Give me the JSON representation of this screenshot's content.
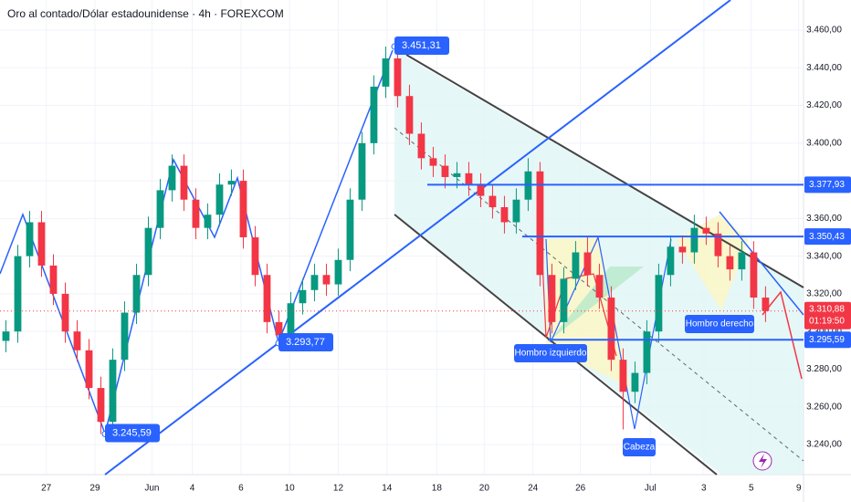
{
  "chart_data": {
    "type": "candlestick",
    "title": "Oro al contado/Dólar estadounidense · 4h · FOREXCOM",
    "up_color": "#089981",
    "down_color": "#f23645",
    "open": [
      3295,
      3300,
      3340,
      3358,
      3335,
      3320,
      3300,
      3290,
      3270,
      3252,
      3285,
      3310,
      3330,
      3355,
      3375,
      3388,
      3370,
      3355,
      3362,
      3378,
      3380,
      3350,
      3330,
      3305,
      3298,
      3315,
      3322,
      3330,
      3325,
      3338,
      3370,
      3400,
      3430,
      3445,
      3425,
      3405,
      3392,
      3388,
      3382,
      3384,
      3378,
      3372,
      3366,
      3358,
      3370,
      3385,
      3330,
      3305,
      3328,
      3342,
      3330,
      3318,
      3285,
      3268,
      3278,
      3300,
      3330,
      3345,
      3342,
      3355,
      3352,
      3340,
      3333,
      3342,
      3318
    ],
    "high": [
      3306,
      3346,
      3364,
      3364,
      3341,
      3326,
      3306,
      3296,
      3276,
      3291,
      3316,
      3336,
      3361,
      3381,
      3394,
      3394,
      3376,
      3368,
      3384,
      3386,
      3386,
      3356,
      3336,
      3311,
      3321,
      3328,
      3336,
      3336,
      3344,
      3376,
      3406,
      3436,
      3451.31,
      3449,
      3431,
      3411,
      3398,
      3394,
      3390,
      3390,
      3384,
      3378,
      3372,
      3376,
      3392,
      3390,
      3336,
      3334,
      3348,
      3350,
      3336,
      3324,
      3291,
      3284,
      3306,
      3336,
      3351,
      3351,
      3362,
      3361,
      3358,
      3346,
      3348,
      3348,
      3324
    ],
    "low": [
      3289,
      3294,
      3334,
      3329,
      3314,
      3294,
      3284,
      3264,
      3245.59,
      3246,
      3279,
      3304,
      3324,
      3349,
      3369,
      3364,
      3349,
      3349,
      3356,
      3372,
      3344,
      3324,
      3299,
      3293.77,
      3292,
      3309,
      3316,
      3319,
      3319,
      3332,
      3364,
      3394,
      3424,
      3419,
      3399,
      3386,
      3382,
      3376,
      3376,
      3372,
      3366,
      3360,
      3352,
      3352,
      3364,
      3324,
      3299,
      3299,
      3322,
      3324,
      3312,
      3279,
      3248,
      3262,
      3272,
      3294,
      3324,
      3336,
      3336,
      3346,
      3334,
      3327,
      3327,
      3312,
      3305
    ],
    "close": [
      3300,
      3340,
      3358,
      3335,
      3320,
      3300,
      3290,
      3270,
      3252,
      3285,
      3310,
      3330,
      3355,
      3375,
      3388,
      3370,
      3355,
      3362,
      3378,
      3380,
      3350,
      3330,
      3305,
      3298,
      3315,
      3322,
      3330,
      3325,
      3338,
      3370,
      3400,
      3430,
      3445,
      3425,
      3405,
      3392,
      3388,
      3382,
      3384,
      3378,
      3372,
      3366,
      3358,
      3370,
      3385,
      3330,
      3305,
      3328,
      3342,
      3330,
      3318,
      3285,
      3268,
      3278,
      3300,
      3330,
      3345,
      3342,
      3355,
      3352,
      3340,
      3333,
      3342,
      3318,
      3310.88
    ],
    "xlim": [
      -0.5,
      67.2
    ],
    "xticks": [
      {
        "value": 3.4,
        "label": "27"
      },
      {
        "value": 7.5,
        "label": "29"
      },
      {
        "value": 12.3,
        "label": "Jun"
      },
      {
        "value": 15.7,
        "label": "4"
      },
      {
        "value": 19.8,
        "label": "6"
      },
      {
        "value": 23.9,
        "label": "10"
      },
      {
        "value": 28,
        "label": "12"
      },
      {
        "value": 32.1,
        "label": "14"
      },
      {
        "value": 36.3,
        "label": "18"
      },
      {
        "value": 40.3,
        "label": "20"
      },
      {
        "value": 44.4,
        "label": "24"
      },
      {
        "value": 48.4,
        "label": "26"
      },
      {
        "value": 54.3,
        "label": "Jul"
      },
      {
        "value": 58.8,
        "label": "3"
      },
      {
        "value": 62.8,
        "label": "5"
      },
      {
        "value": 66.8,
        "label": "9"
      }
    ],
    "ylim": [
      3224,
      3476
    ],
    "yticks": [
      {
        "value": 3240,
        "label": "3.240,00"
      },
      {
        "value": 3260,
        "label": "3.260,00"
      },
      {
        "value": 3280,
        "label": "3.280,00"
      },
      {
        "value": 3300,
        "label": "3.300,00"
      },
      {
        "value": 3320,
        "label": "3.320,00"
      },
      {
        "value": 3340,
        "label": "3.340,00"
      },
      {
        "value": 3360,
        "label": "3.360,00"
      },
      {
        "value": 3380,
        "label": "3.380,00"
      },
      {
        "value": 3400,
        "label": "3.400,00"
      },
      {
        "value": 3420,
        "label": "3.420,00"
      },
      {
        "value": 3440,
        "label": "3.440,00"
      },
      {
        "value": 3460,
        "label": "3.460,00"
      }
    ],
    "levels": [
      {
        "value": 3377.93,
        "label": "3.377,93"
      },
      {
        "value": 3350.43,
        "label": "3.350,43"
      },
      {
        "value": 3295.59,
        "label": "3.295,59"
      }
    ],
    "level_color": "#2962ff",
    "current": {
      "value": 3310.88,
      "label": "3.310,88",
      "countdown": "01:19:50"
    },
    "points": [
      {
        "value": 3451.31,
        "label": "3.451,31"
      },
      {
        "value": 3293.77,
        "label": "3.293,77"
      },
      {
        "value": 3245.59,
        "label": "3.245,59"
      }
    ],
    "patterns": [
      "Hombro izquierdo",
      "Cabeza",
      "Hombro derecho"
    ]
  }
}
